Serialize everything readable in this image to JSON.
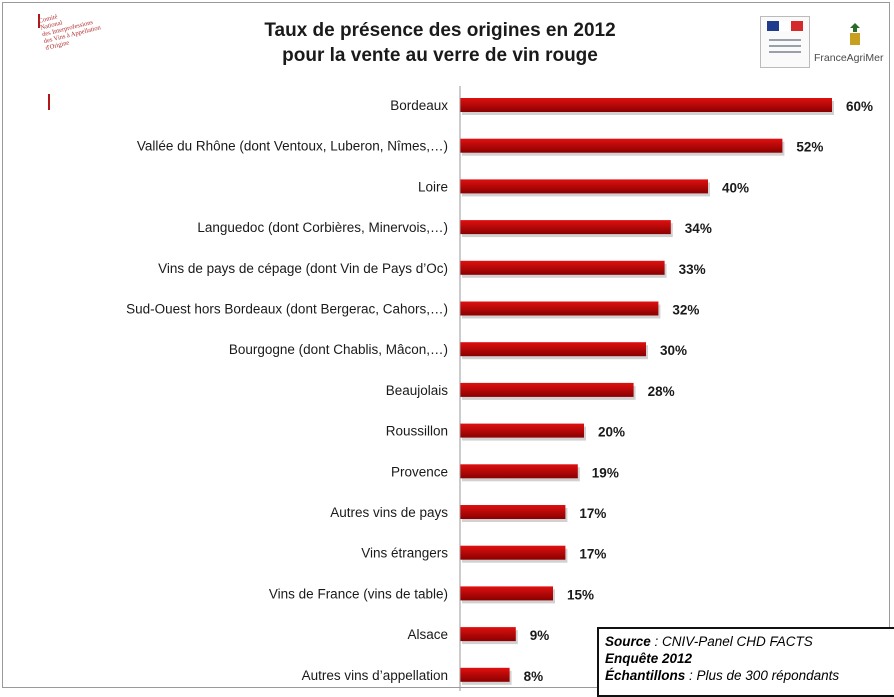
{
  "header": {
    "title_line1": "Taux de présence des origines en 2012",
    "title_line2": "pour la vente au verre de vin rouge"
  },
  "logos": {
    "left_text": "Comité\nNational\ndes Interprofessions\ndes Vins à Appellation\nd'Origine",
    "right_name": "FranceAgriMer"
  },
  "colors": {
    "bar": "#e01010",
    "bar_dark": "#8a0000",
    "axis": "#9a9a9a",
    "flag_blue": "#1f3c8c",
    "flag_red": "#d42a2a"
  },
  "chart_data": {
    "type": "bar",
    "orientation": "horizontal",
    "title": "Taux de présence des origines en 2012 pour la vente au verre de vin rouge",
    "categories": [
      "Bordeaux",
      "Vallée du Rhône (dont Ventoux, Luberon, Nîmes,…)",
      "Loire",
      "Languedoc (dont Corbières, Minervois,…)",
      "Vins de pays de cépage (dont Vin de Pays d’Oc)",
      "Sud-Ouest hors Bordeaux (dont Bergerac, Cahors,…)",
      "Bourgogne (dont Chablis, Mâcon,…)",
      "Beaujolais",
      "Roussillon",
      "Provence",
      "Autres vins de pays",
      "Vins étrangers",
      "Vins de France (vins de table)",
      "Alsace",
      "Autres vins d’appellation"
    ],
    "values": [
      60,
      52,
      40,
      34,
      33,
      32,
      30,
      28,
      20,
      19,
      17,
      17,
      15,
      9,
      8
    ],
    "value_labels": [
      "60%",
      "52%",
      "40%",
      "34%",
      "33%",
      "32%",
      "30%",
      "28%",
      "20%",
      "19%",
      "17%",
      "17%",
      "15%",
      "9%",
      "8%"
    ],
    "unit": "%",
    "xlim": [
      0,
      60
    ],
    "grid": false,
    "legend": "none"
  },
  "source_box": {
    "source_label": "Source",
    "source_text": " : CNIV-Panel  CHD FACTS",
    "enquete": "Enquête 2012",
    "echantillons_label": "Échantillons",
    "echantillons_text": " : Plus de 300 répondants"
  }
}
